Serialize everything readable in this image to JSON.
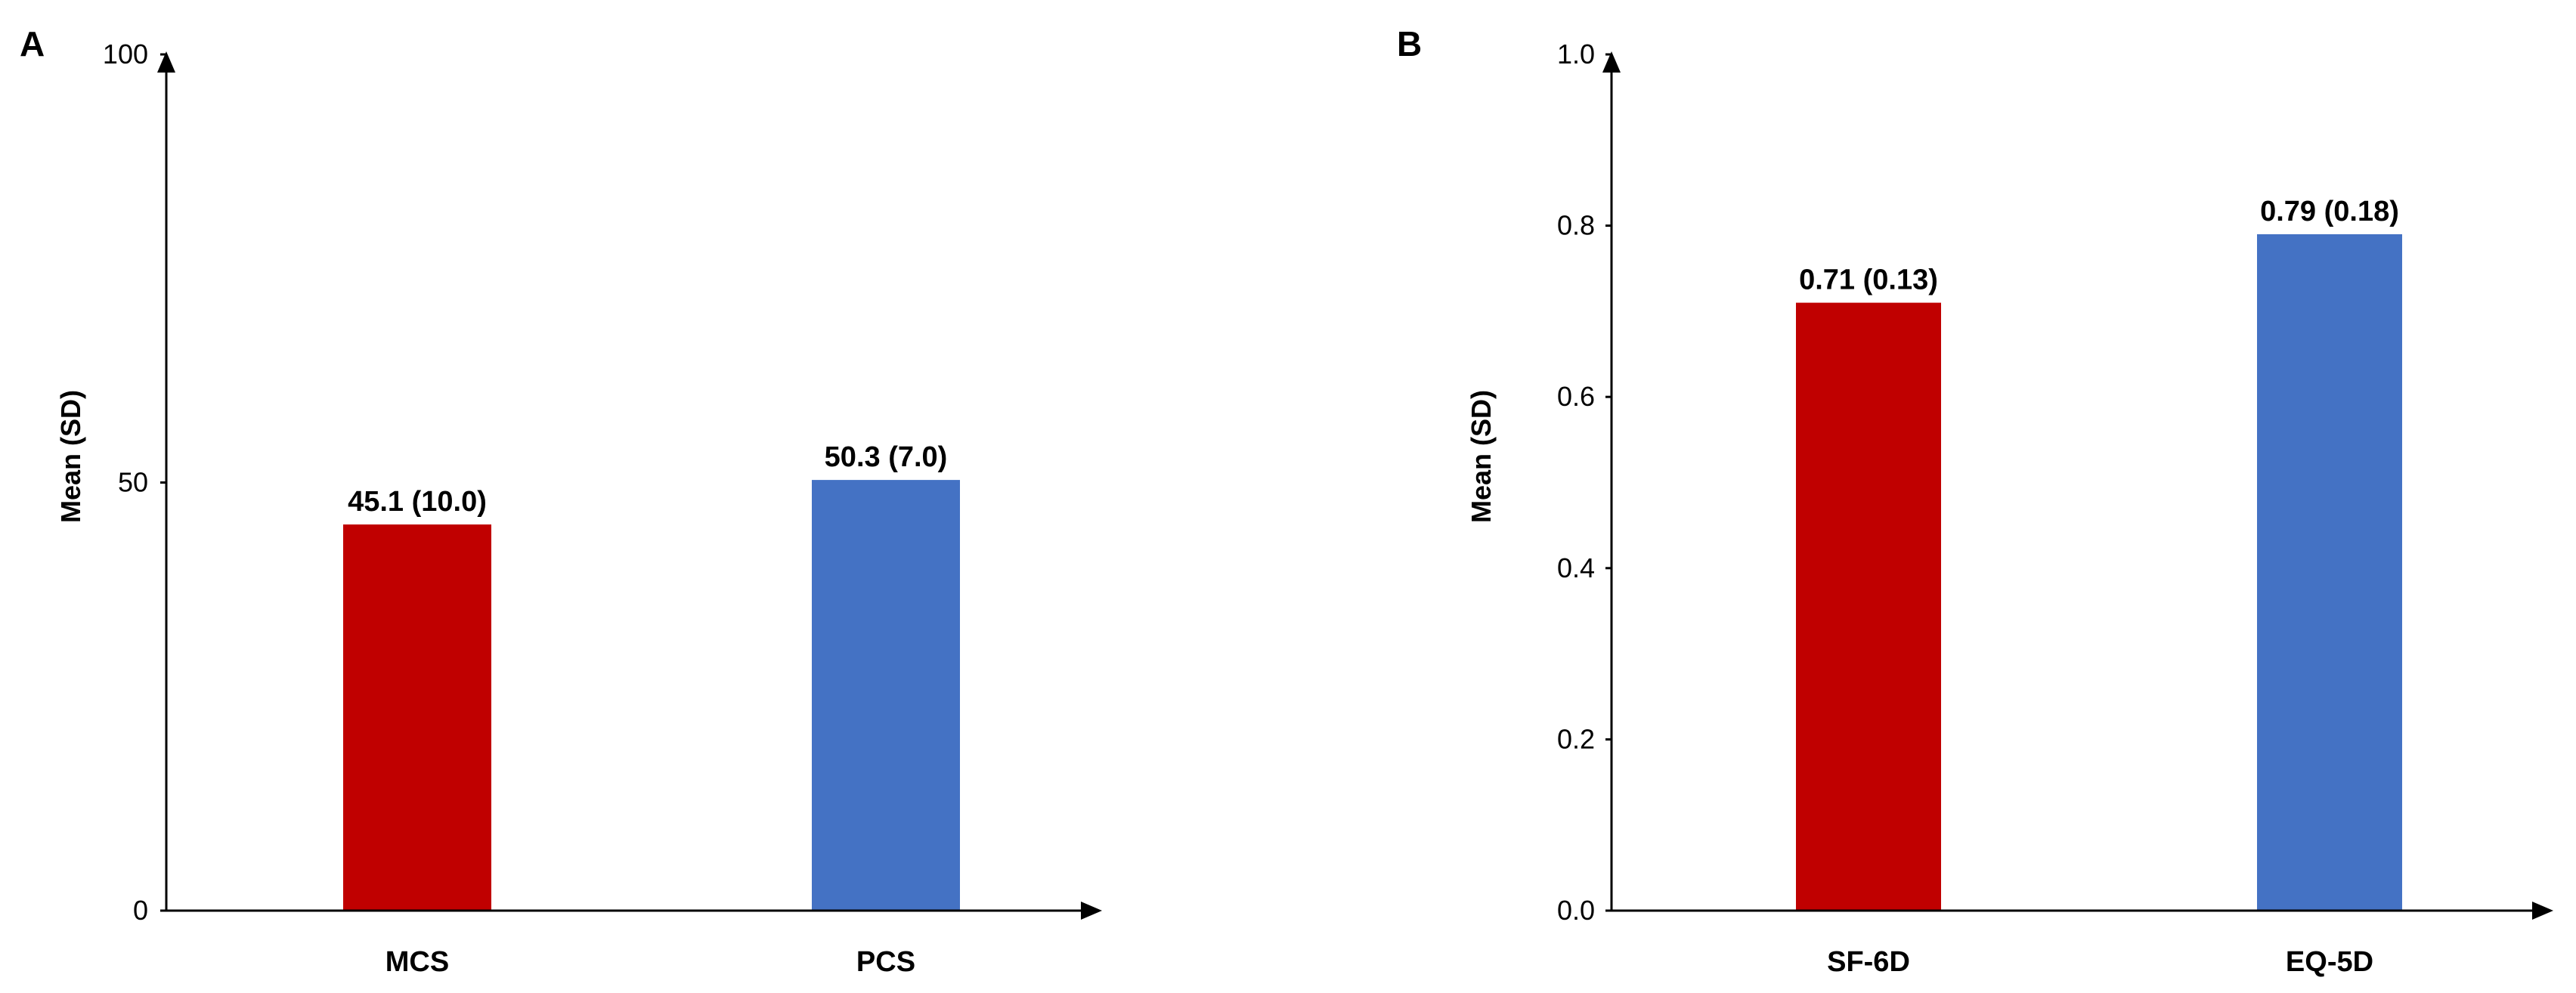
{
  "chart_data": [
    {
      "type": "bar",
      "panel": "A",
      "title": "",
      "xlabel": "",
      "ylabel": "Mean (SD)",
      "ylim": [
        0,
        100
      ],
      "yticks": [
        "0",
        "50",
        "100"
      ],
      "ytick_values": [
        0,
        50,
        100
      ],
      "categories": [
        "MCS",
        "PCS"
      ],
      "values": [
        45.1,
        50.3
      ],
      "data_labels": [
        "45.1 (10.0)",
        "50.3 (7.0)"
      ],
      "colors": [
        "#c00000",
        "#4472c4"
      ],
      "grid": false,
      "legend": "none"
    },
    {
      "type": "bar",
      "panel": "B",
      "title": "",
      "xlabel": "",
      "ylabel": "Mean (SD)",
      "ylim": [
        0,
        1.0
      ],
      "yticks": [
        "0.0",
        "0.2",
        "0.4",
        "0.6",
        "0.8",
        "1.0"
      ],
      "ytick_values": [
        0,
        0.2,
        0.4,
        0.6,
        0.8,
        1.0
      ],
      "categories": [
        "SF-6D",
        "EQ-5D"
      ],
      "values": [
        0.71,
        0.79
      ],
      "data_labels": [
        "0.71 (0.13)",
        "0.79 (0.18)"
      ],
      "colors": [
        "#c00000",
        "#4472c4"
      ],
      "grid": false,
      "legend": "none"
    }
  ]
}
